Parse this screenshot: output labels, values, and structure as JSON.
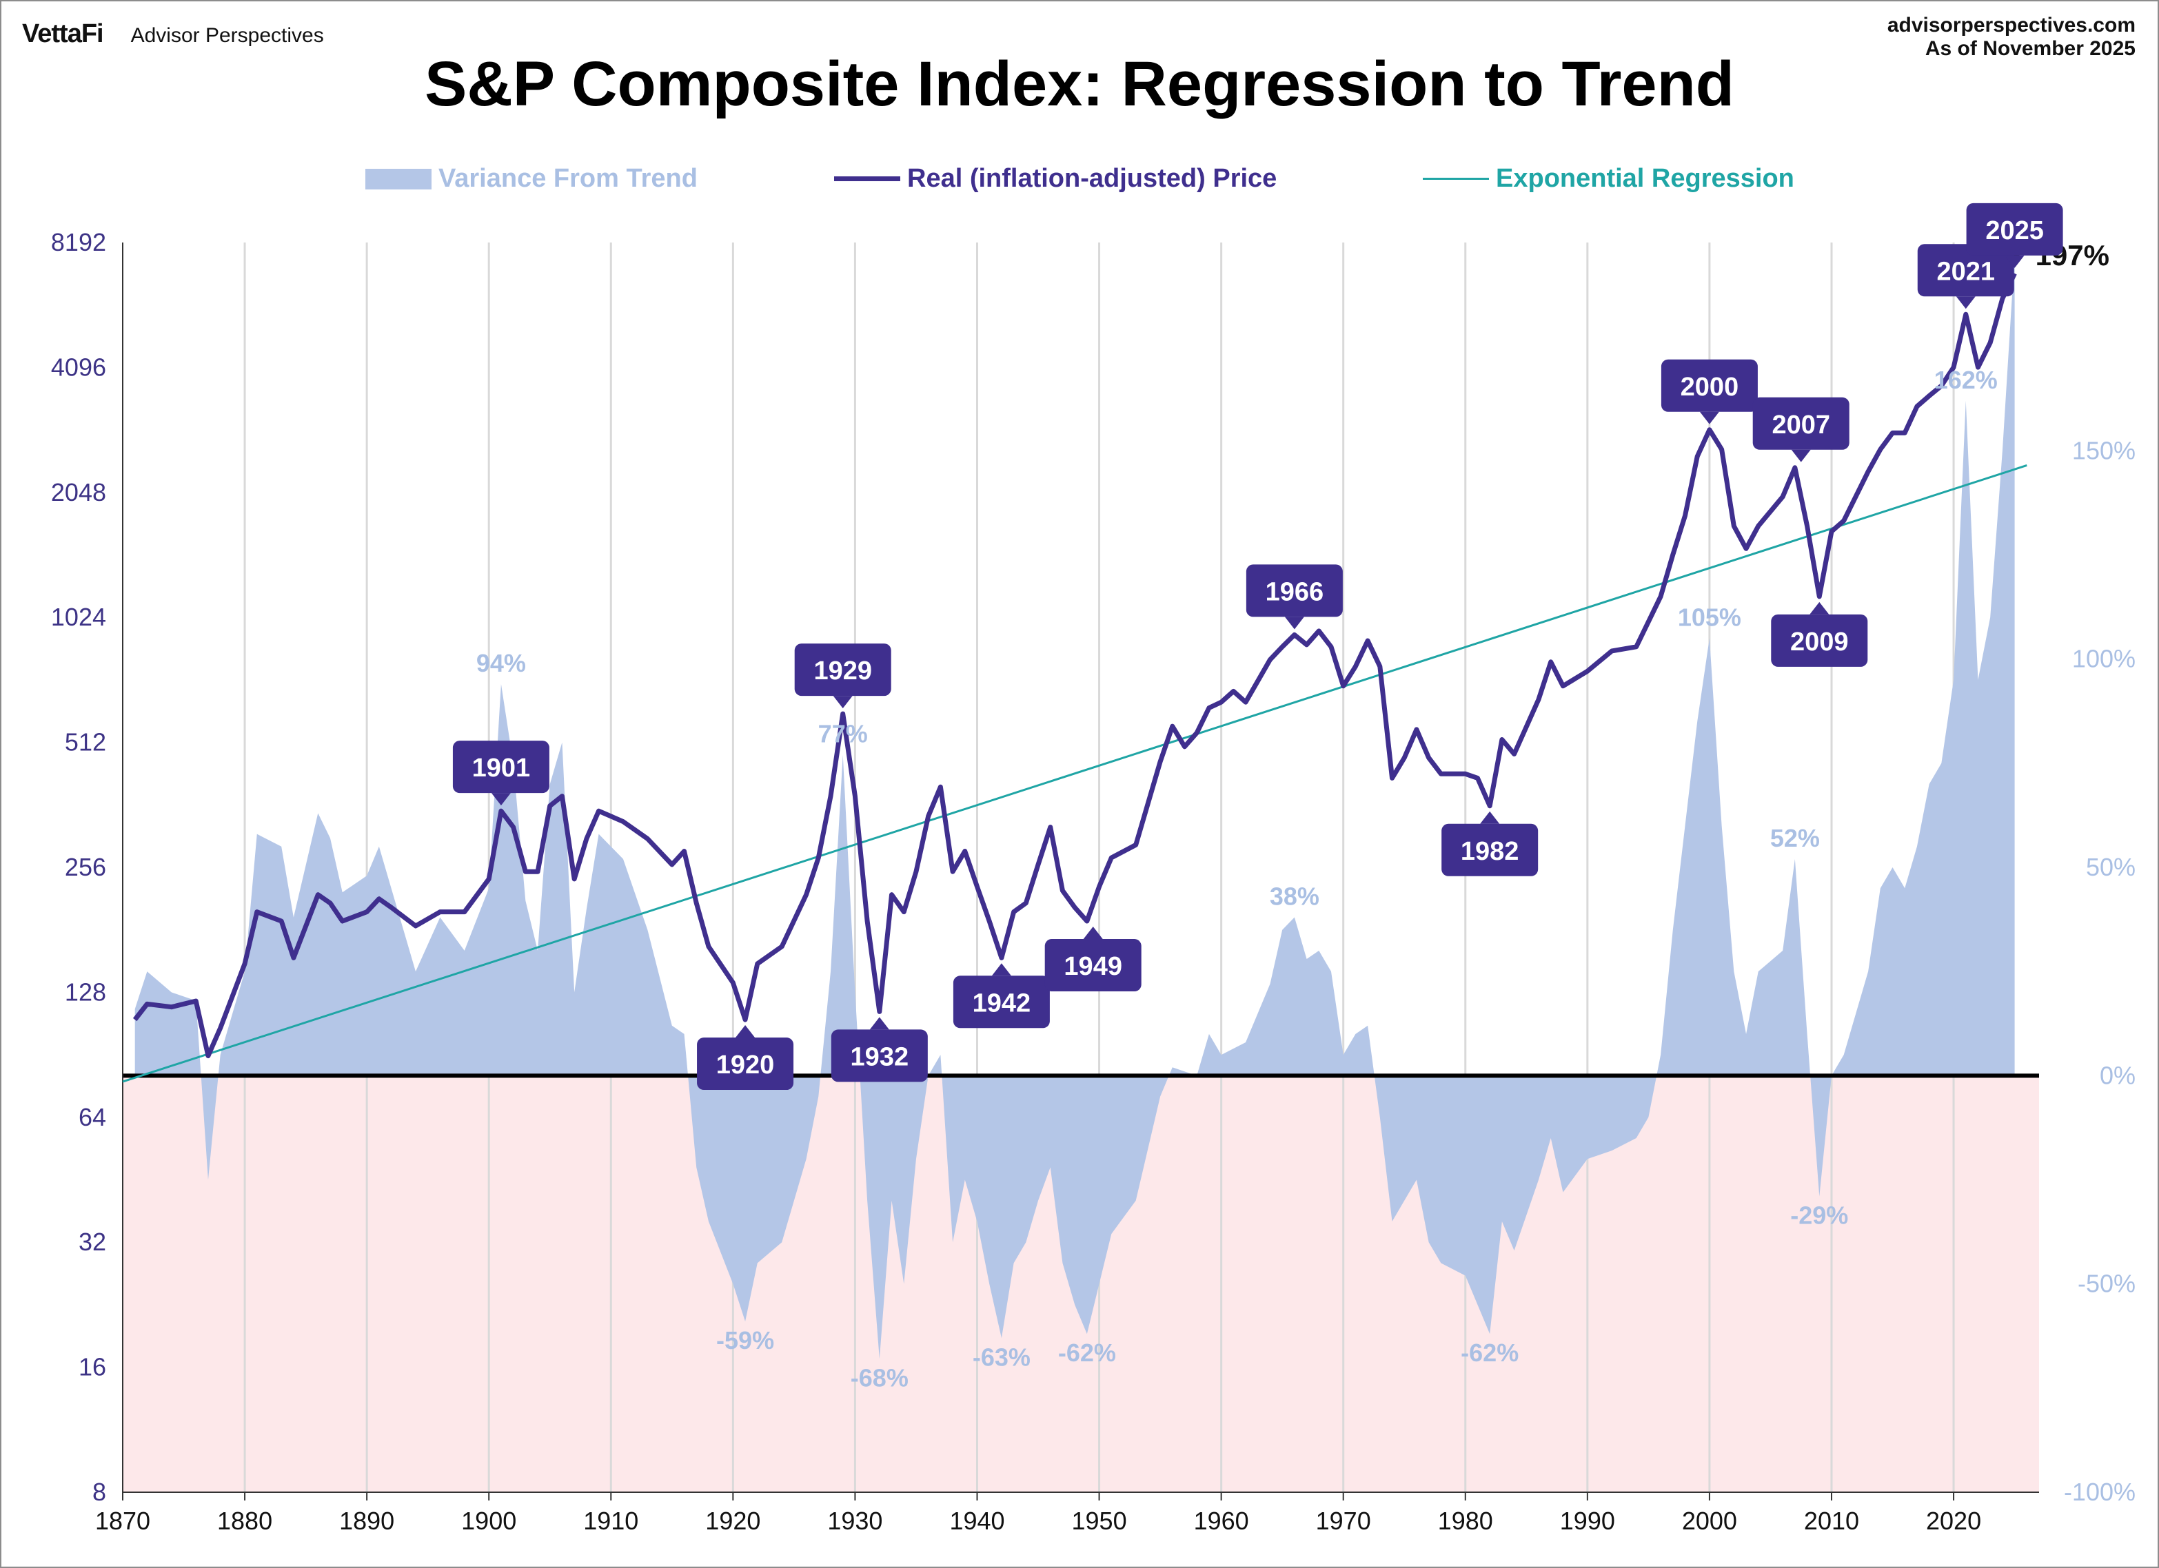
{
  "header": {
    "brand_logo": "VettaFi",
    "brand_name": "Advisor Perspectives",
    "source_site": "advisorperspectives.com",
    "as_of": "As of November  2025"
  },
  "colors": {
    "price": "#3f2f8e",
    "regression": "#1fa5a5",
    "variance_fill": "#b4c6e7",
    "negative_zone": "#fde8ea",
    "callout": "#3f2f8e",
    "right_axis": "#a9bfe3",
    "left_axis": "#3d3386"
  },
  "chart_data": {
    "type": "line",
    "title": "S&P Composite Index: Regression to Trend",
    "log_scale_y": true,
    "grid": "vertical decade lines",
    "legend_placement": "top-center",
    "x_range": [
      1870,
      2027
    ],
    "x_ticks": [
      1870,
      1880,
      1890,
      1900,
      1910,
      1920,
      1930,
      1940,
      1950,
      1960,
      1970,
      1980,
      1990,
      2000,
      2010,
      2020
    ],
    "y_left": {
      "range": [
        8,
        8192
      ],
      "ticks": [
        8192,
        4096,
        2048,
        1024,
        512,
        256,
        128,
        64,
        32,
        16,
        8
      ]
    },
    "y_right": {
      "range": [
        -100,
        200
      ],
      "ticks": [
        "150%",
        "100%",
        "50%",
        "0%",
        "-50%",
        "-100%"
      ],
      "tick_values": [
        150,
        100,
        50,
        0,
        -50,
        -100
      ]
    },
    "series": [
      {
        "name": "Variance From Trend",
        "kind": "area",
        "points": [
          [
            1871,
            16
          ],
          [
            1872,
            25
          ],
          [
            1874,
            20
          ],
          [
            1876,
            18
          ],
          [
            1877,
            -25
          ],
          [
            1878,
            5
          ],
          [
            1880,
            25
          ],
          [
            1881,
            58
          ],
          [
            1883,
            55
          ],
          [
            1884,
            38
          ],
          [
            1886,
            63
          ],
          [
            1887,
            57
          ],
          [
            1888,
            44
          ],
          [
            1890,
            48
          ],
          [
            1891,
            55
          ],
          [
            1892,
            45
          ],
          [
            1894,
            25
          ],
          [
            1896,
            38
          ],
          [
            1898,
            30
          ],
          [
            1900,
            45
          ],
          [
            1901,
            94
          ],
          [
            1902,
            75
          ],
          [
            1903,
            42
          ],
          [
            1904,
            30
          ],
          [
            1905,
            70
          ],
          [
            1906,
            80
          ],
          [
            1907,
            20
          ],
          [
            1908,
            40
          ],
          [
            1909,
            58
          ],
          [
            1911,
            52
          ],
          [
            1913,
            35
          ],
          [
            1915,
            12
          ],
          [
            1916,
            10
          ],
          [
            1917,
            -22
          ],
          [
            1918,
            -35
          ],
          [
            1920,
            -50
          ],
          [
            1921,
            -59
          ],
          [
            1922,
            -45
          ],
          [
            1924,
            -40
          ],
          [
            1926,
            -20
          ],
          [
            1927,
            -5
          ],
          [
            1928,
            25
          ],
          [
            1929,
            77
          ],
          [
            1930,
            20
          ],
          [
            1931,
            -30
          ],
          [
            1932,
            -68
          ],
          [
            1933,
            -30
          ],
          [
            1934,
            -50
          ],
          [
            1935,
            -20
          ],
          [
            1936,
            0
          ],
          [
            1937,
            5
          ],
          [
            1938,
            -40
          ],
          [
            1939,
            -25
          ],
          [
            1940,
            -35
          ],
          [
            1941,
            -50
          ],
          [
            1942,
            -63
          ],
          [
            1943,
            -45
          ],
          [
            1944,
            -40
          ],
          [
            1945,
            -30
          ],
          [
            1946,
            -22
          ],
          [
            1947,
            -45
          ],
          [
            1948,
            -55
          ],
          [
            1949,
            -62
          ],
          [
            1950,
            -50
          ],
          [
            1951,
            -38
          ],
          [
            1953,
            -30
          ],
          [
            1955,
            -5
          ],
          [
            1956,
            2
          ],
          [
            1958,
            0
          ],
          [
            1959,
            10
          ],
          [
            1960,
            5
          ],
          [
            1962,
            8
          ],
          [
            1963,
            15
          ],
          [
            1964,
            22
          ],
          [
            1965,
            35
          ],
          [
            1966,
            38
          ],
          [
            1967,
            28
          ],
          [
            1968,
            30
          ],
          [
            1969,
            25
          ],
          [
            1970,
            5
          ],
          [
            1971,
            10
          ],
          [
            1972,
            12
          ],
          [
            1973,
            -10
          ],
          [
            1974,
            -35
          ],
          [
            1975,
            -30
          ],
          [
            1976,
            -25
          ],
          [
            1977,
            -40
          ],
          [
            1978,
            -45
          ],
          [
            1980,
            -48
          ],
          [
            1981,
            -55
          ],
          [
            1982,
            -62
          ],
          [
            1983,
            -35
          ],
          [
            1984,
            -42
          ],
          [
            1986,
            -25
          ],
          [
            1987,
            -15
          ],
          [
            1988,
            -28
          ],
          [
            1990,
            -20
          ],
          [
            1992,
            -18
          ],
          [
            1994,
            -15
          ],
          [
            1995,
            -10
          ],
          [
            1996,
            5
          ],
          [
            1997,
            35
          ],
          [
            1998,
            60
          ],
          [
            1999,
            85
          ],
          [
            2000,
            105
          ],
          [
            2001,
            60
          ],
          [
            2002,
            25
          ],
          [
            2003,
            10
          ],
          [
            2004,
            25
          ],
          [
            2006,
            30
          ],
          [
            2007,
            52
          ],
          [
            2008,
            10
          ],
          [
            2009,
            -29
          ],
          [
            2010,
            0
          ],
          [
            2011,
            5
          ],
          [
            2013,
            25
          ],
          [
            2014,
            45
          ],
          [
            2015,
            50
          ],
          [
            2016,
            45
          ],
          [
            2017,
            55
          ],
          [
            2018,
            70
          ],
          [
            2019,
            75
          ],
          [
            2020,
            95
          ],
          [
            2021,
            162
          ],
          [
            2022,
            95
          ],
          [
            2023,
            110
          ],
          [
            2024,
            150
          ],
          [
            2025,
            197
          ]
        ]
      },
      {
        "name": "Real (inflation-adjusted) Price",
        "kind": "line",
        "points": [
          [
            1871,
            110
          ],
          [
            1872,
            120
          ],
          [
            1874,
            118
          ],
          [
            1876,
            122
          ],
          [
            1877,
            90
          ],
          [
            1878,
            105
          ],
          [
            1880,
            150
          ],
          [
            1881,
            200
          ],
          [
            1883,
            190
          ],
          [
            1884,
            155
          ],
          [
            1886,
            220
          ],
          [
            1887,
            210
          ],
          [
            1888,
            190
          ],
          [
            1890,
            200
          ],
          [
            1891,
            215
          ],
          [
            1892,
            205
          ],
          [
            1894,
            185
          ],
          [
            1896,
            200
          ],
          [
            1898,
            200
          ],
          [
            1900,
            240
          ],
          [
            1901,
            350
          ],
          [
            1902,
            320
          ],
          [
            1903,
            250
          ],
          [
            1904,
            250
          ],
          [
            1905,
            360
          ],
          [
            1906,
            380
          ],
          [
            1907,
            240
          ],
          [
            1908,
            300
          ],
          [
            1909,
            350
          ],
          [
            1911,
            330
          ],
          [
            1913,
            300
          ],
          [
            1915,
            260
          ],
          [
            1916,
            280
          ],
          [
            1917,
            210
          ],
          [
            1918,
            165
          ],
          [
            1920,
            135
          ],
          [
            1921,
            110
          ],
          [
            1922,
            150
          ],
          [
            1924,
            165
          ],
          [
            1926,
            220
          ],
          [
            1927,
            270
          ],
          [
            1928,
            380
          ],
          [
            1929,
            600
          ],
          [
            1930,
            380
          ],
          [
            1931,
            190
          ],
          [
            1932,
            115
          ],
          [
            1933,
            220
          ],
          [
            1934,
            200
          ],
          [
            1935,
            250
          ],
          [
            1936,
            340
          ],
          [
            1937,
            400
          ],
          [
            1938,
            250
          ],
          [
            1939,
            280
          ],
          [
            1940,
            230
          ],
          [
            1941,
            190
          ],
          [
            1942,
            155
          ],
          [
            1943,
            200
          ],
          [
            1944,
            210
          ],
          [
            1945,
            260
          ],
          [
            1946,
            320
          ],
          [
            1947,
            225
          ],
          [
            1948,
            205
          ],
          [
            1949,
            190
          ],
          [
            1950,
            230
          ],
          [
            1951,
            270
          ],
          [
            1953,
            290
          ],
          [
            1955,
            460
          ],
          [
            1956,
            560
          ],
          [
            1957,
            500
          ],
          [
            1958,
            540
          ],
          [
            1959,
            620
          ],
          [
            1960,
            640
          ],
          [
            1961,
            680
          ],
          [
            1962,
            640
          ],
          [
            1963,
            720
          ],
          [
            1964,
            810
          ],
          [
            1965,
            870
          ],
          [
            1966,
            930
          ],
          [
            1967,
            880
          ],
          [
            1968,
            950
          ],
          [
            1969,
            870
          ],
          [
            1970,
            700
          ],
          [
            1971,
            780
          ],
          [
            1972,
            900
          ],
          [
            1973,
            780
          ],
          [
            1974,
            420
          ],
          [
            1975,
            470
          ],
          [
            1976,
            550
          ],
          [
            1977,
            470
          ],
          [
            1978,
            430
          ],
          [
            1980,
            430
          ],
          [
            1981,
            420
          ],
          [
            1982,
            360
          ],
          [
            1983,
            520
          ],
          [
            1984,
            480
          ],
          [
            1986,
            650
          ],
          [
            1987,
            800
          ],
          [
            1988,
            700
          ],
          [
            1990,
            760
          ],
          [
            1992,
            850
          ],
          [
            1994,
            870
          ],
          [
            1995,
            1000
          ],
          [
            1996,
            1150
          ],
          [
            1997,
            1450
          ],
          [
            1998,
            1800
          ],
          [
            1999,
            2500
          ],
          [
            2000,
            2900
          ],
          [
            2001,
            2600
          ],
          [
            2002,
            1700
          ],
          [
            2003,
            1500
          ],
          [
            2004,
            1700
          ],
          [
            2006,
            2000
          ],
          [
            2007,
            2350
          ],
          [
            2008,
            1700
          ],
          [
            2009,
            1150
          ],
          [
            2010,
            1650
          ],
          [
            2011,
            1750
          ],
          [
            2013,
            2300
          ],
          [
            2014,
            2600
          ],
          [
            2015,
            2850
          ],
          [
            2016,
            2850
          ],
          [
            2017,
            3300
          ],
          [
            2018,
            3500
          ],
          [
            2019,
            3700
          ],
          [
            2020,
            4100
          ],
          [
            2021,
            5500
          ],
          [
            2022,
            4100
          ],
          [
            2023,
            4700
          ],
          [
            2024,
            6000
          ],
          [
            2025,
            6900
          ]
        ]
      },
      {
        "name": "Exponential Regression",
        "kind": "line",
        "from": [
          1870,
          78
        ],
        "to": [
          2026,
          2380
        ]
      }
    ],
    "callouts": [
      {
        "label": "1901",
        "x": 1901,
        "y": 350,
        "side": "above"
      },
      {
        "label": "1920",
        "x": 1921,
        "y": 110,
        "side": "below"
      },
      {
        "label": "1929",
        "x": 1929,
        "y": 600,
        "side": "above"
      },
      {
        "label": "1932",
        "x": 1932,
        "y": 115,
        "side": "below"
      },
      {
        "label": "1942",
        "x": 1942,
        "y": 155,
        "side": "below"
      },
      {
        "label": "1949",
        "x": 1949.5,
        "y": 190,
        "side": "below"
      },
      {
        "label": "1966",
        "x": 1966,
        "y": 930,
        "side": "above"
      },
      {
        "label": "1982",
        "x": 1982,
        "y": 360,
        "side": "below"
      },
      {
        "label": "2000",
        "x": 2000,
        "y": 2900,
        "side": "above"
      },
      {
        "label": "2007",
        "x": 2007.5,
        "y": 2350,
        "side": "above"
      },
      {
        "label": "2009",
        "x": 2009,
        "y": 1150,
        "side": "below"
      },
      {
        "label": "2021",
        "x": 2021,
        "y": 5500,
        "side": "above"
      },
      {
        "label": "2025",
        "x": 2025,
        "y": 6900,
        "side": "above"
      }
    ],
    "variance_labels": [
      {
        "text": "94%",
        "x": 1901,
        "v": 94
      },
      {
        "text": "77%",
        "x": 1929,
        "v": 77
      },
      {
        "text": "-59%",
        "x": 1921,
        "v": -59
      },
      {
        "text": "-68%",
        "x": 1932,
        "v": -68
      },
      {
        "text": "-63%",
        "x": 1942,
        "v": -63
      },
      {
        "text": "-62%",
        "x": 1949,
        "v": -62
      },
      {
        "text": "38%",
        "x": 1966,
        "v": 38
      },
      {
        "text": "-62%",
        "x": 1982,
        "v": -62
      },
      {
        "text": "105%",
        "x": 2000,
        "v": 105
      },
      {
        "text": "52%",
        "x": 2007,
        "v": 52
      },
      {
        "text": "-29%",
        "x": 2009,
        "v": -29
      },
      {
        "text": "162%",
        "x": 2021,
        "v": 162
      }
    ],
    "last_value": {
      "text": "197%",
      "x": 2025,
      "v": 197
    }
  }
}
